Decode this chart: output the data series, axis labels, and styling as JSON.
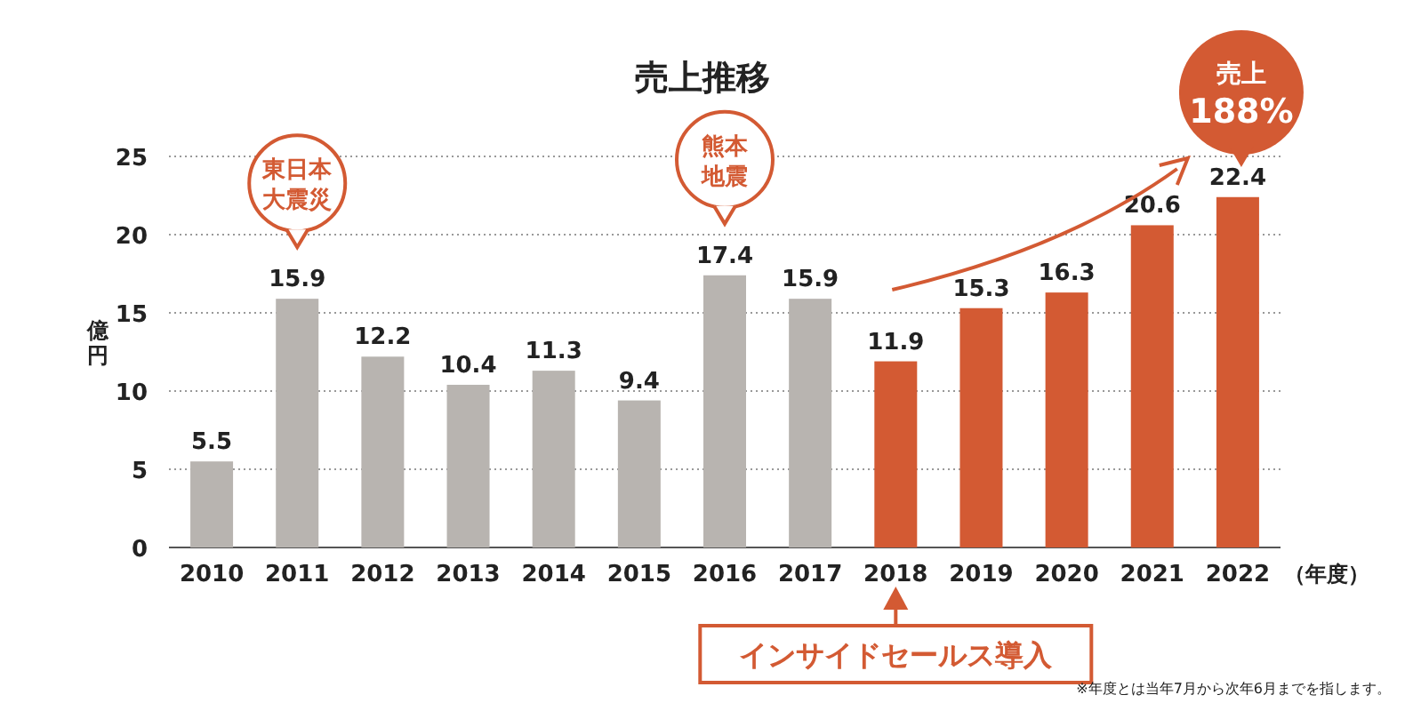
{
  "chart_data": {
    "type": "bar",
    "title": "売上推移",
    "ylabel": "億円",
    "xlabel": "（年度）",
    "categories": [
      "2010",
      "2011",
      "2012",
      "2013",
      "2014",
      "2015",
      "2016",
      "2017",
      "2018",
      "2019",
      "2020",
      "2021",
      "2022"
    ],
    "values": [
      5.5,
      15.9,
      12.2,
      10.4,
      11.3,
      9.4,
      17.4,
      15.9,
      11.9,
      15.3,
      16.3,
      20.6,
      22.4
    ],
    "colors": [
      "#b8b4b0",
      "#b8b4b0",
      "#b8b4b0",
      "#b8b4b0",
      "#b8b4b0",
      "#b8b4b0",
      "#b8b4b0",
      "#b8b4b0",
      "#d35a33",
      "#d35a33",
      "#d35a33",
      "#d35a33",
      "#d35a33"
    ],
    "ylim": [
      0,
      25
    ],
    "yticks": [
      0,
      5,
      10,
      15,
      20,
      25
    ],
    "grid": "y",
    "data_labels": true,
    "annotations": [
      "東日本大震災",
      "熊本地震",
      "売上188%",
      "インサイドセールス導入",
      "※年度とは当年7月から次年6月までを指します。"
    ]
  }
}
